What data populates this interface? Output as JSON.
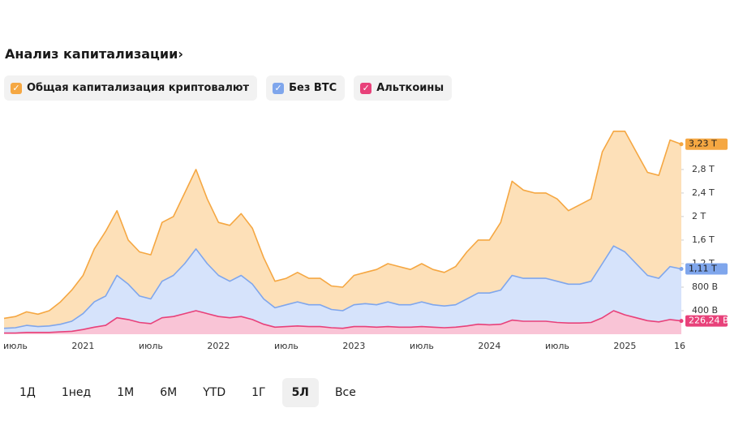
{
  "header": {
    "title": "Анализ капитализации›"
  },
  "chart_data": {
    "type": "area",
    "categories": [
      null,
      "июль",
      null,
      null,
      null,
      null,
      null,
      "2021",
      null,
      null,
      null,
      null,
      null,
      "июль",
      null,
      null,
      null,
      null,
      null,
      "2022",
      null,
      null,
      null,
      null,
      null,
      "июль",
      null,
      null,
      null,
      null,
      null,
      "2023",
      null,
      null,
      null,
      null,
      null,
      "июль",
      null,
      null,
      null,
      null,
      null,
      "2024",
      null,
      null,
      null,
      null,
      null,
      "июль",
      null,
      null,
      null,
      null,
      null,
      "2025",
      null,
      null,
      null,
      null,
      "16"
    ],
    "series": [
      {
        "name": "Общая капитализация криптовалют",
        "color": "#f5a742",
        "fill": "#fde0b8",
        "last_label": "3,23 T",
        "values": [
          0.27,
          0.3,
          0.38,
          0.34,
          0.4,
          0.55,
          0.75,
          1.0,
          1.45,
          1.75,
          2.1,
          1.6,
          1.4,
          1.35,
          1.9,
          2.0,
          2.4,
          2.8,
          2.3,
          1.9,
          1.85,
          2.05,
          1.8,
          1.3,
          0.9,
          0.95,
          1.05,
          0.95,
          0.95,
          0.82,
          0.8,
          1.0,
          1.05,
          1.1,
          1.2,
          1.15,
          1.1,
          1.2,
          1.1,
          1.05,
          1.15,
          1.4,
          1.6,
          1.6,
          1.9,
          2.6,
          2.45,
          2.4,
          2.4,
          2.3,
          2.1,
          2.2,
          2.3,
          3.1,
          3.45,
          3.45,
          3.1,
          2.75,
          2.7,
          3.3,
          3.23
        ]
      },
      {
        "name": "Без BTC",
        "color": "#7fa6ec",
        "fill": "#d6e3fb",
        "last_label": "1,11 T",
        "values": [
          0.1,
          0.11,
          0.15,
          0.13,
          0.14,
          0.17,
          0.22,
          0.35,
          0.55,
          0.65,
          1.0,
          0.85,
          0.65,
          0.6,
          0.9,
          1.0,
          1.2,
          1.45,
          1.2,
          1.0,
          0.9,
          1.0,
          0.85,
          0.6,
          0.45,
          0.5,
          0.55,
          0.5,
          0.5,
          0.42,
          0.4,
          0.5,
          0.52,
          0.5,
          0.55,
          0.5,
          0.5,
          0.55,
          0.5,
          0.48,
          0.5,
          0.6,
          0.7,
          0.7,
          0.75,
          1.0,
          0.95,
          0.95,
          0.95,
          0.9,
          0.85,
          0.85,
          0.9,
          1.2,
          1.5,
          1.4,
          1.2,
          1.0,
          0.95,
          1.15,
          1.11
        ]
      },
      {
        "name": "Альткоины",
        "color": "#e8417a",
        "fill": "#f9c4d6",
        "last_label": "226,24 B",
        "values": [
          0.02,
          0.02,
          0.03,
          0.03,
          0.03,
          0.04,
          0.05,
          0.08,
          0.12,
          0.15,
          0.28,
          0.25,
          0.2,
          0.18,
          0.28,
          0.3,
          0.35,
          0.4,
          0.35,
          0.3,
          0.28,
          0.3,
          0.25,
          0.17,
          0.12,
          0.13,
          0.14,
          0.13,
          0.13,
          0.11,
          0.1,
          0.13,
          0.13,
          0.12,
          0.13,
          0.12,
          0.12,
          0.13,
          0.12,
          0.11,
          0.12,
          0.14,
          0.17,
          0.16,
          0.17,
          0.24,
          0.22,
          0.22,
          0.22,
          0.2,
          0.19,
          0.19,
          0.2,
          0.28,
          0.4,
          0.33,
          0.28,
          0.23,
          0.21,
          0.25,
          0.22624
        ]
      }
    ],
    "ylim": [
      0,
      3.75
    ],
    "yticks": [
      {
        "value": 0.4,
        "label": "400 B"
      },
      {
        "value": 0.8,
        "label": "800 B"
      },
      {
        "value": 1.2,
        "label": "1,2 T"
      },
      {
        "value": 1.6,
        "label": "1,6 T"
      },
      {
        "value": 2,
        "label": "2 T"
      },
      {
        "value": 2.4,
        "label": "2,4 T"
      },
      {
        "value": 2.8,
        "label": "2,8 T"
      }
    ],
    "grid": false
  },
  "range_buttons": {
    "items": [
      "1Д",
      "1нед",
      "1М",
      "6М",
      "YTD",
      "1Г",
      "5Л",
      "Все"
    ],
    "selected": 6
  }
}
